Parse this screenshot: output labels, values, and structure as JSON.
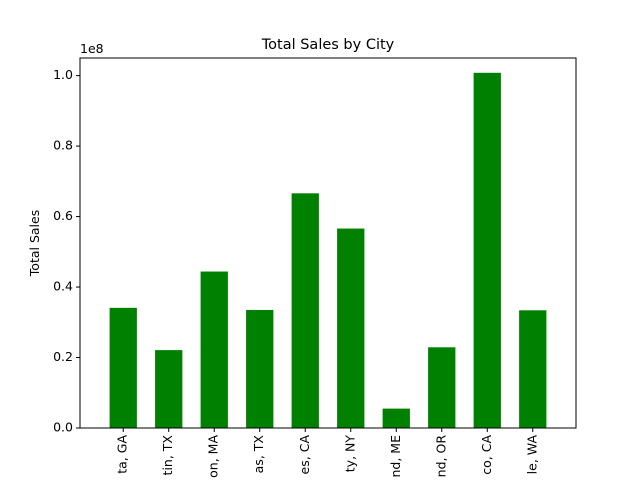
{
  "chart_data": {
    "type": "bar",
    "title": "Total Sales by City",
    "xlabel": "",
    "ylabel": "Total Sales",
    "y_offset_text": "1e8",
    "categories": [
      "ta, GA",
      "tin, TX",
      "on, MA",
      "as, TX",
      "es, CA",
      "ty, NY",
      "nd, ME",
      "nd, OR",
      "co, CA",
      "le, WA"
    ],
    "values": [
      0.341,
      0.221,
      0.444,
      0.335,
      0.666,
      0.566,
      0.055,
      0.229,
      1.008,
      0.334
    ],
    "value_scale": 100000000,
    "ylim": [
      0,
      1.05
    ],
    "yticks": [
      0.0,
      0.2,
      0.4,
      0.6,
      0.8,
      1.0
    ],
    "ytick_labels": [
      "0.0",
      "0.2",
      "0.4",
      "0.6",
      "0.8",
      "1.0"
    ],
    "bar_color": "#008000",
    "grid": false,
    "legend": "none"
  }
}
